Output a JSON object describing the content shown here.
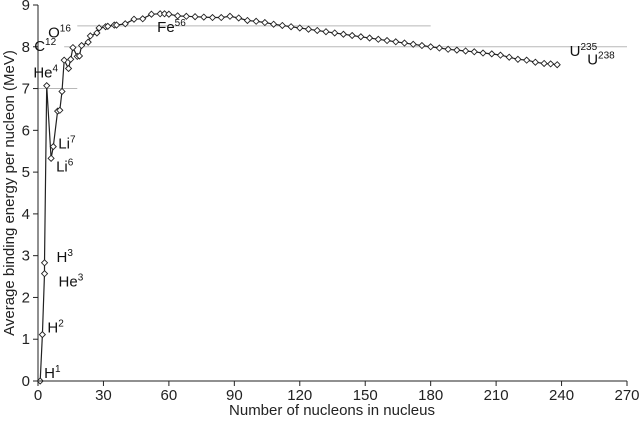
{
  "chart_data": {
    "type": "line",
    "title": "",
    "xlabel": "Number of nucleons in nucleus",
    "ylabel": "Average binding energy per nucleon (MeV)",
    "xlim": [
      0,
      270
    ],
    "ylim": [
      0,
      9
    ],
    "xticks": [
      "0",
      "30",
      "60",
      "90",
      "120",
      "150",
      "180",
      "210",
      "240",
      "270"
    ],
    "yticks": [
      "0",
      "1",
      "2",
      "3",
      "4",
      "5",
      "6",
      "7",
      "8",
      "9"
    ],
    "grid": false,
    "reference_lines": [
      {
        "y": 7.0,
        "x": [
          0,
          18
        ]
      },
      {
        "y": 8.0,
        "x": [
          12,
          270
        ]
      },
      {
        "y": 8.5,
        "x": [
          18,
          180
        ]
      }
    ],
    "series": [
      {
        "x": [
          1,
          2,
          3,
          3,
          4,
          6,
          7,
          9,
          10,
          11,
          12,
          14,
          15,
          16,
          18,
          19,
          20,
          23,
          24,
          27,
          28,
          31,
          32,
          35,
          36,
          40,
          44,
          48,
          52,
          56,
          58,
          60,
          64,
          68,
          72,
          76,
          80,
          84,
          88,
          92,
          96,
          100,
          104,
          108,
          112,
          116,
          120,
          124,
          128,
          132,
          136,
          140,
          144,
          148,
          152,
          156,
          160,
          164,
          168,
          172,
          176,
          180,
          184,
          188,
          192,
          196,
          200,
          204,
          208,
          212,
          216,
          220,
          224,
          228,
          232,
          235,
          238
        ],
        "y": [
          0,
          1.11,
          2.57,
          2.83,
          7.07,
          5.33,
          5.61,
          6.46,
          6.48,
          6.93,
          7.68,
          7.48,
          7.7,
          7.98,
          7.77,
          7.78,
          8.03,
          8.11,
          8.26,
          8.33,
          8.45,
          8.48,
          8.49,
          8.52,
          8.52,
          8.55,
          8.66,
          8.67,
          8.78,
          8.79,
          8.79,
          8.78,
          8.74,
          8.73,
          8.72,
          8.71,
          8.7,
          8.7,
          8.73,
          8.69,
          8.63,
          8.61,
          8.58,
          8.54,
          8.51,
          8.48,
          8.45,
          8.42,
          8.39,
          8.36,
          8.33,
          8.3,
          8.27,
          8.24,
          8.21,
          8.18,
          8.15,
          8.12,
          8.09,
          8.06,
          8.03,
          8.0,
          7.97,
          7.94,
          7.92,
          7.9,
          7.88,
          7.85,
          7.83,
          7.8,
          7.75,
          7.7,
          7.68,
          7.63,
          7.6,
          7.59,
          7.57
        ]
      }
    ],
    "annotations": [
      {
        "base": "H",
        "sup": "1",
        "x": 1,
        "y": 0
      },
      {
        "base": "H",
        "sup": "2",
        "x": 2,
        "y": 1.11
      },
      {
        "base": "H",
        "sup": "3",
        "x": 3,
        "y": 2.83
      },
      {
        "base": "He",
        "sup": "3",
        "x": 3,
        "y": 2.57
      },
      {
        "base": "He",
        "sup": "4",
        "x": 4,
        "y": 7.07
      },
      {
        "base": "Li",
        "sup": "6",
        "x": 6,
        "y": 5.33
      },
      {
        "base": "Li",
        "sup": "7",
        "x": 7,
        "y": 5.61
      },
      {
        "base": "C",
        "sup": "12",
        "x": 12,
        "y": 7.68
      },
      {
        "base": "O",
        "sup": "16",
        "x": 16,
        "y": 7.98
      },
      {
        "base": "Fe",
        "sup": "56",
        "x": 56,
        "y": 8.79
      },
      {
        "base": "U",
        "sup": "235",
        "x": 235,
        "y": 7.59
      },
      {
        "base": "U",
        "sup": "238",
        "x": 238,
        "y": 7.57
      }
    ]
  }
}
